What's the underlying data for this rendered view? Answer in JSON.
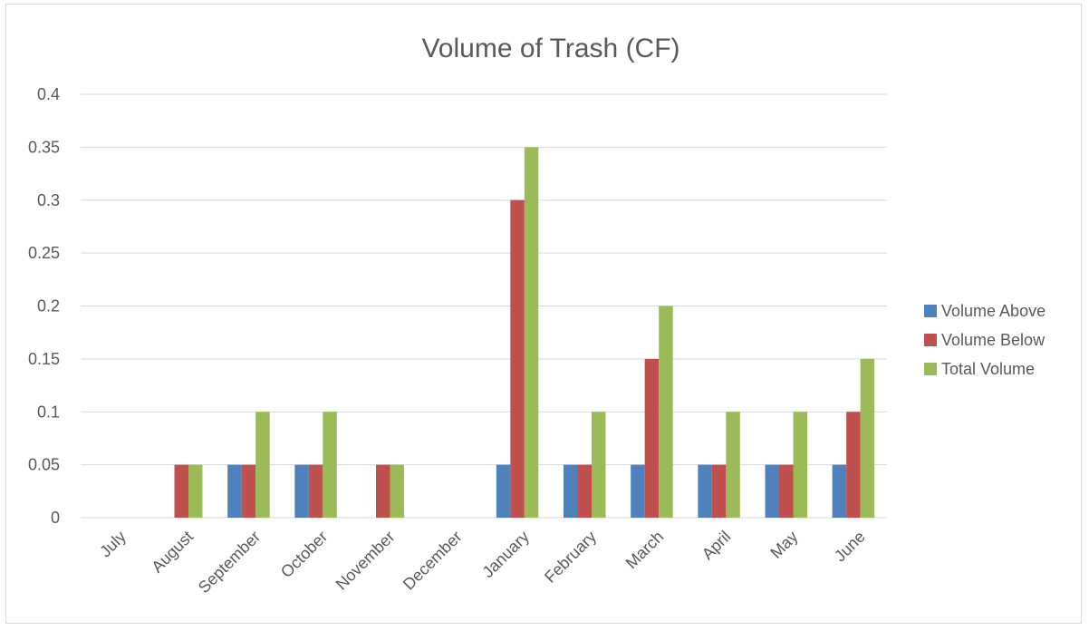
{
  "chart_data": {
    "type": "bar",
    "title": "Volume of Trash (CF)",
    "xlabel": "",
    "ylabel": "",
    "ylim": [
      0,
      0.4
    ],
    "yticks": [
      "0",
      "0.05",
      "0.1",
      "0.15",
      "0.2",
      "0.25",
      "0.3",
      "0.35",
      "0.4"
    ],
    "categories": [
      "July",
      "August",
      "September",
      "October",
      "November",
      "December",
      "January",
      "February",
      "March",
      "April",
      "May",
      "June"
    ],
    "series": [
      {
        "name": "Volume Above",
        "color": "#4f81bd",
        "values": [
          0,
          0,
          0.05,
          0.05,
          0,
          0,
          0.05,
          0.05,
          0.05,
          0.05,
          0.05,
          0.05
        ]
      },
      {
        "name": "Volume Below",
        "color": "#c0504d",
        "values": [
          0,
          0.05,
          0.05,
          0.05,
          0.05,
          0,
          0.3,
          0.05,
          0.15,
          0.05,
          0.05,
          0.1
        ]
      },
      {
        "name": "Total Volume",
        "color": "#9bbb59",
        "values": [
          0,
          0.05,
          0.1,
          0.1,
          0.05,
          0,
          0.35,
          0.1,
          0.2,
          0.1,
          0.1,
          0.15
        ]
      }
    ],
    "grid": true,
    "legend_position": "right"
  }
}
